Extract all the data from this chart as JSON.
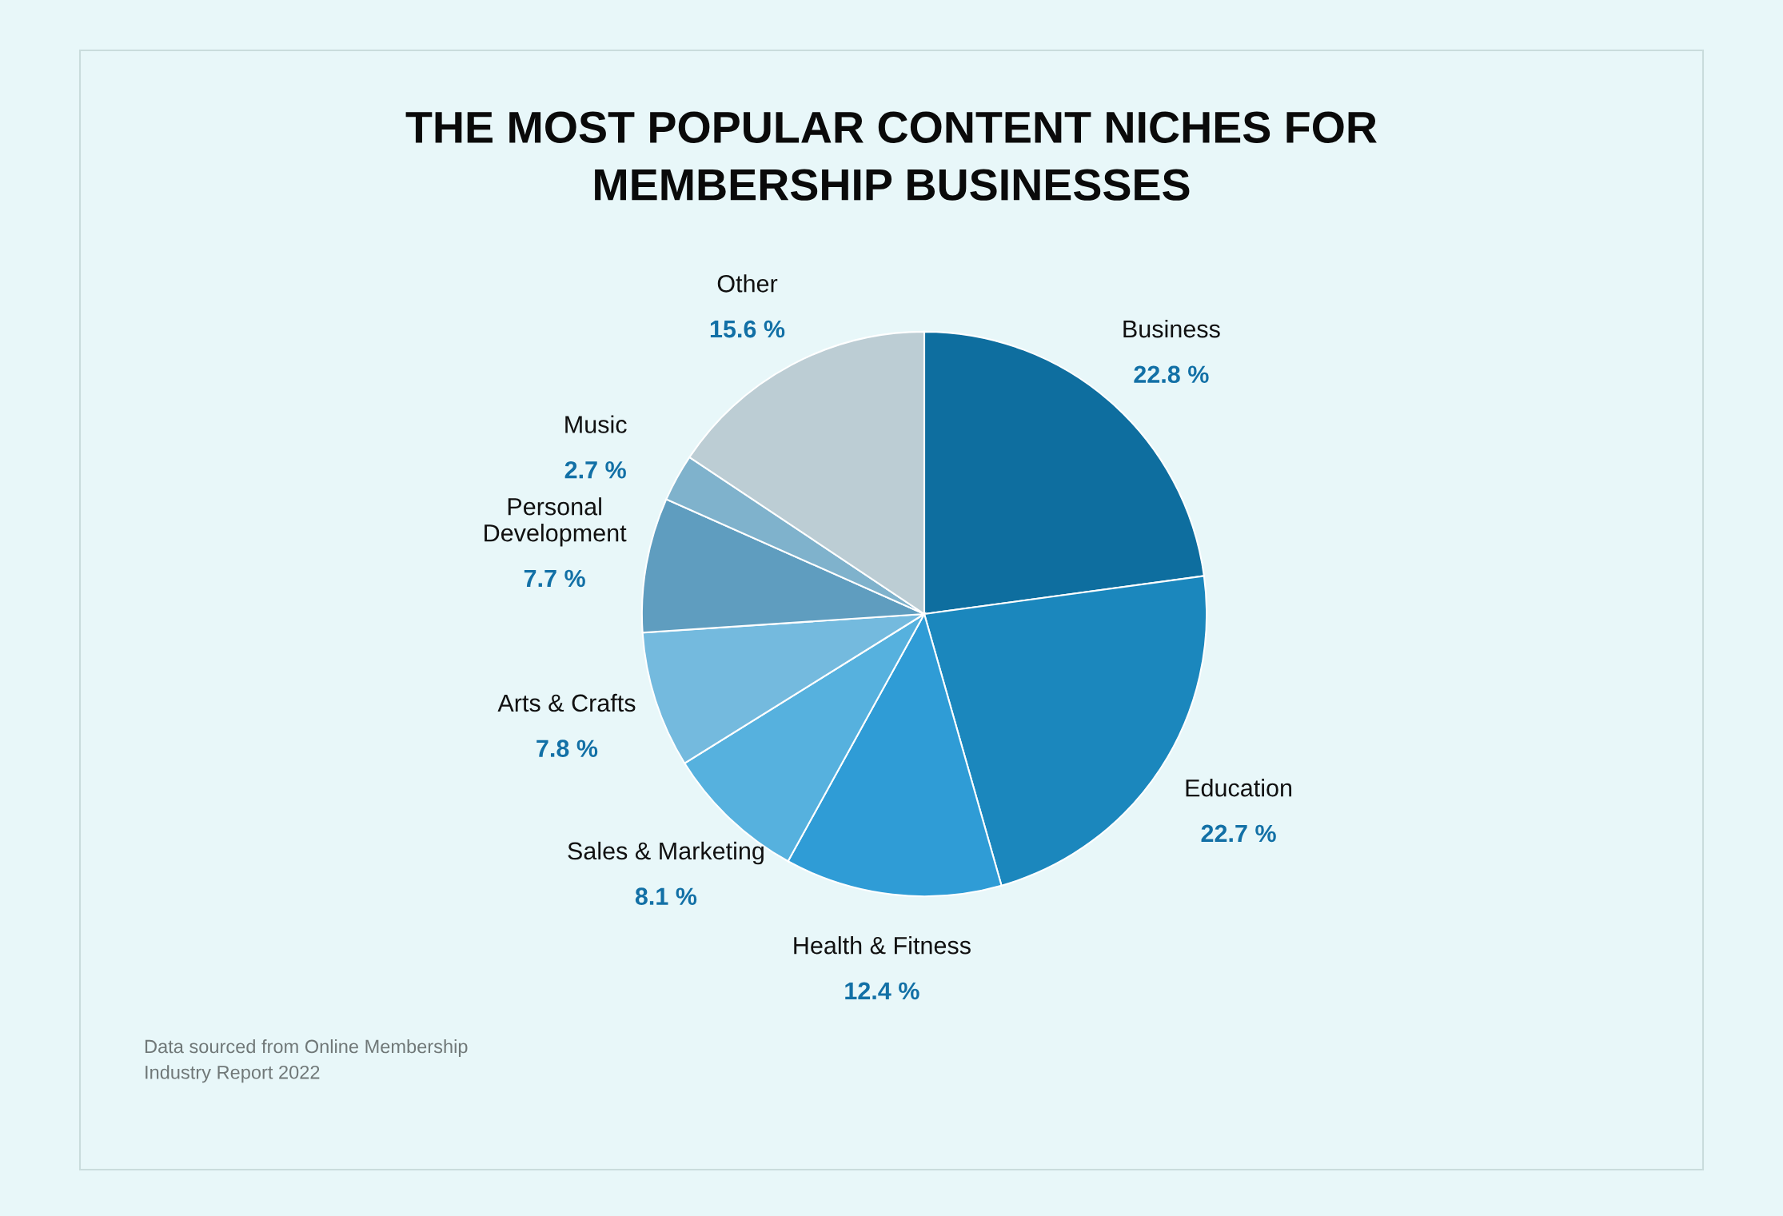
{
  "chart_data": {
    "type": "pie",
    "title": "THE MOST POPULAR CONTENT NICHES FOR\nMEMBERSHIP BUSINESSES",
    "categories": [
      "Business",
      "Education",
      "Health & Fitness",
      "Sales & Marketing",
      "Arts & Crafts",
      "Personal\nDevelopment",
      "Music",
      "Other"
    ],
    "values": [
      22.8,
      22.7,
      12.4,
      8.1,
      7.8,
      7.7,
      2.7,
      15.6
    ],
    "value_labels": [
      "22.8 %",
      "22.7 %",
      "12.4 %",
      "8.1 %",
      "7.8 %",
      "7.7 %",
      "2.7 %",
      "15.6 %"
    ],
    "colors": [
      "#0e6e9f",
      "#1b87bd",
      "#2f9cd6",
      "#56b1de",
      "#74bade",
      "#5f9dbf",
      "#7fb2cc",
      "#bccdd4"
    ],
    "annotations": [
      "Data sourced from Online Membership\nIndustry Report 2022"
    ]
  }
}
